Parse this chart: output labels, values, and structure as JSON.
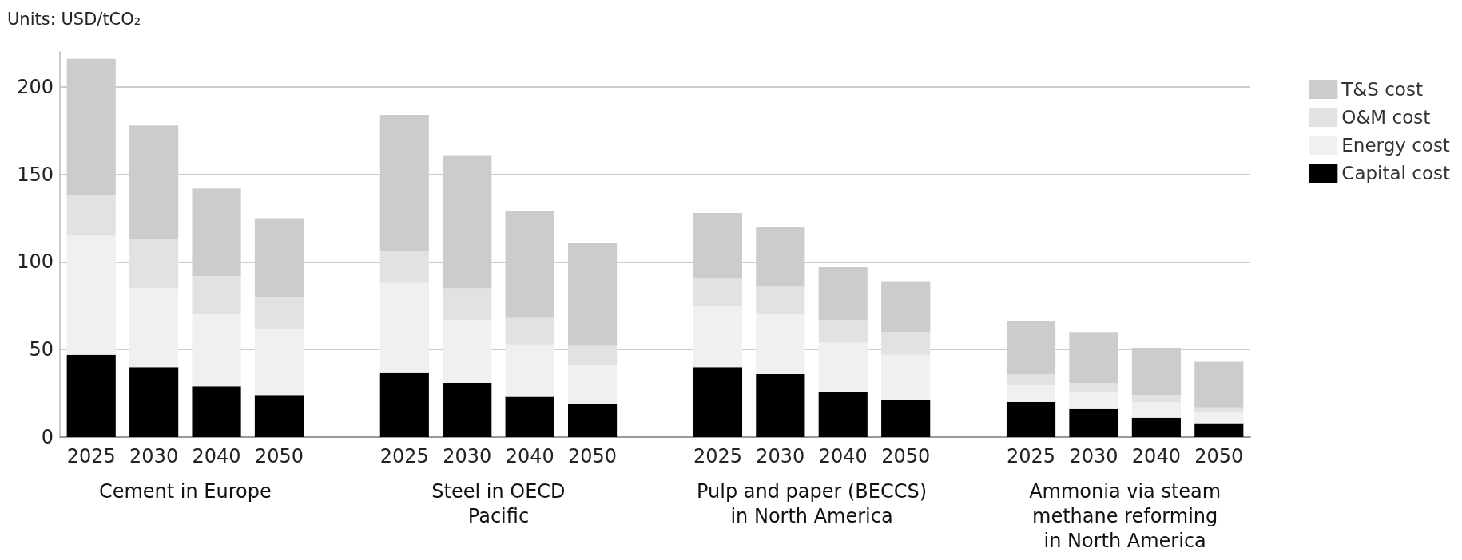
{
  "chart_data": {
    "type": "bar",
    "title": "Units: USD/tCO₂",
    "stacked": true,
    "grid": "y",
    "legend": "top right",
    "categories": [
      "2025",
      "2030",
      "2040",
      "2050",
      null,
      "2025",
      "2030",
      "2040",
      "2050",
      null,
      "2025",
      "2030",
      "2040",
      "2050",
      null,
      "2025",
      "2030",
      "2040",
      "2050"
    ],
    "series": [
      {
        "name": "Capital cost",
        "color": "#000000",
        "values": [
          47,
          40,
          29,
          24,
          null,
          37,
          31,
          23,
          19,
          null,
          40,
          36,
          26,
          21,
          null,
          20,
          16,
          11,
          8
        ]
      },
      {
        "name": "Energy cost",
        "color": "#f0f0f0",
        "values": [
          68,
          45,
          41,
          38,
          null,
          51,
          36,
          30,
          22,
          null,
          35,
          34,
          28,
          26,
          null,
          10,
          10,
          9,
          6
        ]
      },
      {
        "name": "O&M cost",
        "color": "#e2e2e2",
        "values": [
          23,
          28,
          22,
          18,
          null,
          18,
          18,
          15,
          11,
          null,
          16,
          16,
          13,
          13,
          null,
          6,
          5,
          4,
          3
        ]
      },
      {
        "name": "T&S cost",
        "color": "#cccccc",
        "values": [
          78,
          65,
          50,
          45,
          null,
          78,
          76,
          61,
          59,
          null,
          37,
          34,
          30,
          29,
          null,
          30,
          29,
          27,
          26
        ]
      }
    ],
    "ylim": [
      0,
      220
    ],
    "yticks": [
      0,
      50,
      100,
      150,
      200
    ],
    "annotations": [
      "Cement in Europe",
      "Steel in OECD\nPacific",
      "Pulp and paper (BECCS)\nin North America",
      "Ammonia via steam\nmethane reforming\nin North America"
    ]
  }
}
